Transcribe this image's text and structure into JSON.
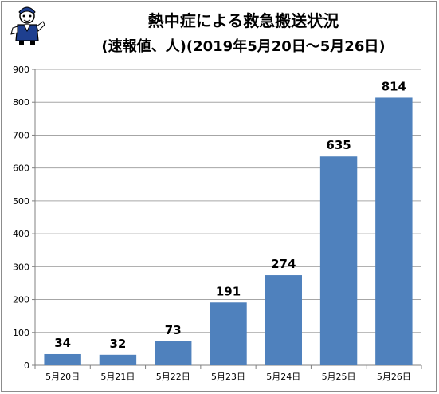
{
  "chart_data": {
    "type": "bar",
    "title": "熱中症による救急搬送状況",
    "subtitle": "(速報値、人)(2019年5月20日～5月26日)",
    "categories": [
      "5月20日",
      "5月21日",
      "5月22日",
      "5月23日",
      "5月24日",
      "5月25日",
      "5月26日"
    ],
    "values": [
      34,
      32,
      73,
      191,
      274,
      635,
      814
    ],
    "ylim": [
      0,
      900
    ],
    "yticks": [
      "0",
      "100",
      "200",
      "300",
      "400",
      "500",
      "600",
      "700",
      "800",
      "900"
    ],
    "grid": true,
    "bar_color": "#4f81bd"
  }
}
